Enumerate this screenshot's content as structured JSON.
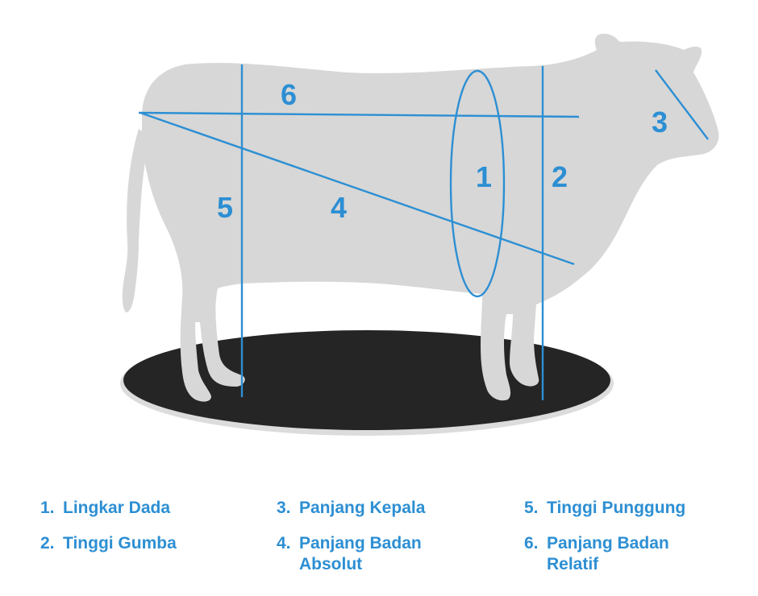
{
  "colors": {
    "body": "#d7d7d7",
    "platform": "#252525",
    "platform_edge": "#dcdcdc",
    "accent": "#2d8fd3",
    "background": "#ffffff"
  },
  "diagram": {
    "labels": {
      "m1": "1",
      "m2": "2",
      "m3": "3",
      "m4": "4",
      "m5": "5",
      "m6": "6"
    }
  },
  "legend": {
    "col1": [
      {
        "num": "1.",
        "text": "Lingkar Dada"
      },
      {
        "num": "2.",
        "text": "Tinggi Gumba"
      }
    ],
    "col2": [
      {
        "num": "3.",
        "text": "Panjang Kepala"
      },
      {
        "num": "4.",
        "text": "Panjang Badan",
        "text2": "Absolut"
      }
    ],
    "col3": [
      {
        "num": "5.",
        "text": "Tinggi Punggung"
      },
      {
        "num": "6.",
        "text": "Panjang Badan",
        "text2": "Relatif"
      }
    ]
  }
}
